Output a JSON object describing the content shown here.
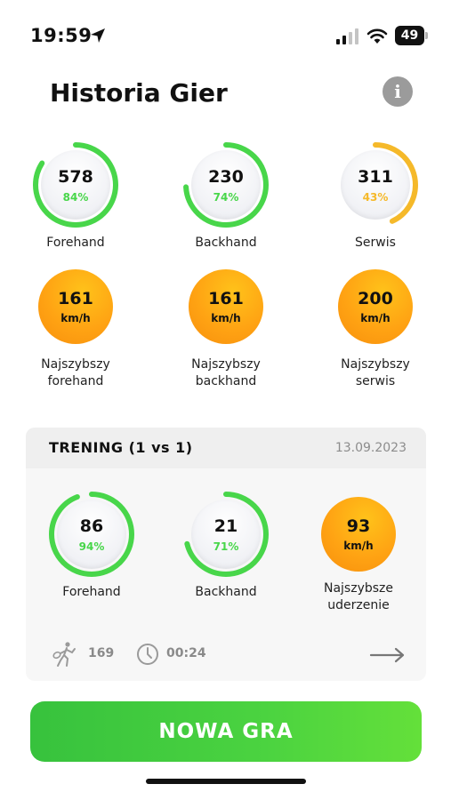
{
  "status_bar": {
    "time": "19:59",
    "battery": "49"
  },
  "header": {
    "title": "Historia Gier",
    "info_label": "i"
  },
  "overall": {
    "strokes": [
      {
        "value": "578",
        "percent": "84%",
        "fraction": 0.84,
        "label": "Forehand",
        "color": "#48d64a"
      },
      {
        "value": "230",
        "percent": "74%",
        "fraction": 0.74,
        "label": "Backhand",
        "color": "#48d64a"
      },
      {
        "value": "311",
        "percent": "43%",
        "fraction": 0.43,
        "label": "Serwis",
        "color": "#f5b92a"
      }
    ],
    "speeds": [
      {
        "value": "161",
        "unit": "km/h",
        "label_line1": "Najszybszy",
        "label_line2": "forehand"
      },
      {
        "value": "161",
        "unit": "km/h",
        "label_line1": "Najszybszy",
        "label_line2": "backhand"
      },
      {
        "value": "200",
        "unit": "km/h",
        "label_line1": "Najszybszy",
        "label_line2": "serwis"
      }
    ]
  },
  "session": {
    "title": "TRENING (1 vs 1)",
    "date": "13.09.2023",
    "strokes": [
      {
        "value": "86",
        "percent": "94%",
        "fraction": 0.94,
        "label": "Forehand",
        "color": "#48d64a"
      },
      {
        "value": "21",
        "percent": "71%",
        "fraction": 0.71,
        "label": "Backhand",
        "color": "#48d64a"
      }
    ],
    "top_speed": {
      "value": "93",
      "unit": "km/h",
      "label_line1": "Najszybsze",
      "label_line2": "uderzenie"
    },
    "hits": "169",
    "duration": "00:24"
  },
  "new_game_button": {
    "label": "NOWA GRA"
  }
}
